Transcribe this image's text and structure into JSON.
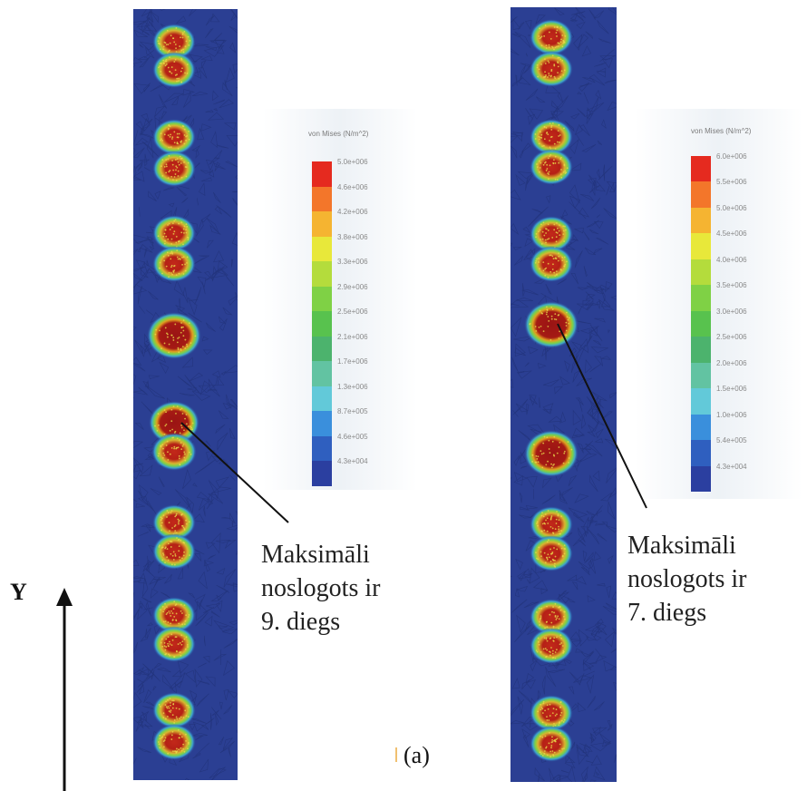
{
  "left_panel": {
    "legend_title": "von Mises (N/m^2)",
    "ticks": [
      "5.0e+006",
      "4.6e+006",
      "4.2e+006",
      "3.8e+006",
      "3.3e+006",
      "2.9e+006",
      "2.5e+006",
      "2.1e+006",
      "1.7e+006",
      "1.3e+006",
      "8.7e+005",
      "4.6e+005",
      "4.3e+004"
    ],
    "callout": "Maksimāli\nnoslogots ir\n9. diegs"
  },
  "right_panel": {
    "legend_title": "von Mises (N/m^2)",
    "ticks": [
      "6.0e+006",
      "5.5e+006",
      "5.0e+006",
      "4.5e+006",
      "4.0e+006",
      "3.5e+006",
      "3.0e+006",
      "2.5e+006",
      "2.0e+006",
      "1.5e+006",
      "1.0e+006",
      "5.4e+005",
      "4.3e+004"
    ],
    "callout": "Maksimāli\nnoslogots ir\n7. diegs"
  },
  "colors": {
    "mesh_bg": "#2b3f93",
    "scale": [
      "#e52a1f",
      "#f3762a",
      "#f5b431",
      "#e8e83a",
      "#b4dc3c",
      "#7fd145",
      "#58c24e",
      "#4cb36d",
      "#62c3a2",
      "#62c9d9",
      "#3a8fdc",
      "#2f5fbf",
      "#2b3fa0"
    ]
  },
  "axis_label": "Y",
  "panel_label": "(a)"
}
